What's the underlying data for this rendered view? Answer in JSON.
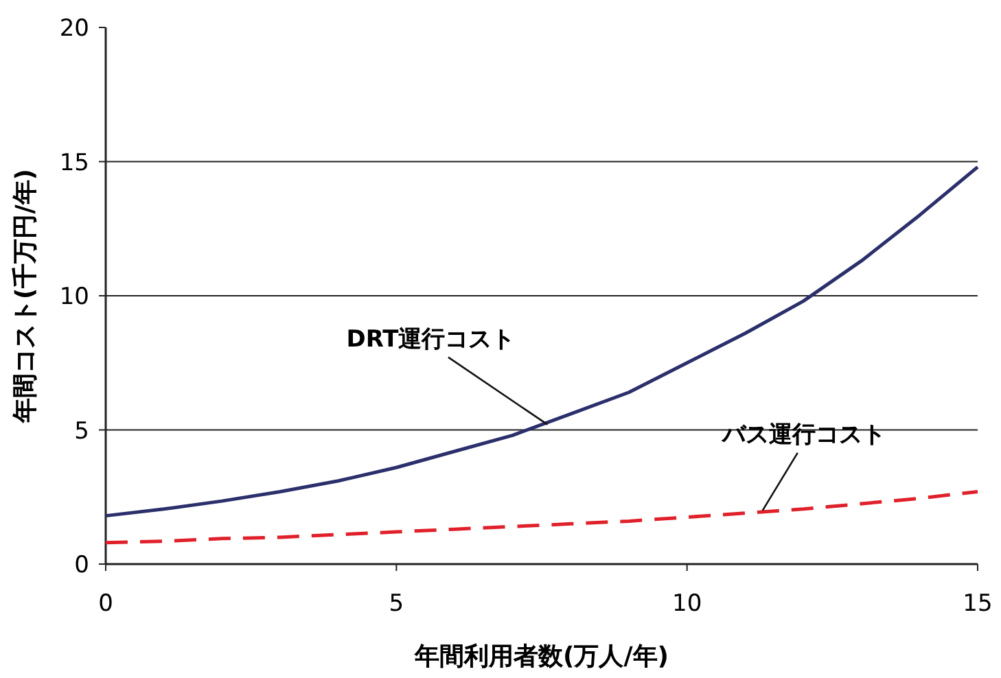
{
  "chart_data": {
    "type": "line",
    "xlabel": "年間利用者数(万人/年)",
    "ylabel": "年間コスト(千万円/年)",
    "x": [
      0,
      1,
      2,
      3,
      4,
      5,
      6,
      7,
      8,
      9,
      10,
      11,
      12,
      13,
      14,
      15
    ],
    "series": [
      {
        "color": "#2b2f6b",
        "line_style": "solid",
        "values": [
          1.8,
          2.05,
          2.35,
          2.7,
          3.1,
          3.6,
          4.2,
          4.8,
          5.6,
          6.4,
          7.5,
          8.6,
          9.8,
          11.3,
          13.0,
          14.8
        ]
      },
      {
        "color": "#e0202a",
        "line_style": "dashed",
        "values": [
          0.8,
          0.85,
          0.95,
          1.0,
          1.1,
          1.2,
          1.3,
          1.4,
          1.5,
          1.6,
          1.75,
          1.9,
          2.05,
          2.25,
          2.45,
          2.7
        ]
      }
    ],
    "annotations": [
      {
        "text": "DRT運行コスト",
        "x": 7.6,
        "y": 5.2
      },
      {
        "text": "バス運行コスト",
        "x": 11.3,
        "y": 2.0
      }
    ],
    "xlim": [
      0,
      15
    ],
    "ylim": [
      0,
      20
    ],
    "xticks": [
      0,
      5,
      10,
      15
    ],
    "yticks": [
      0,
      5,
      10,
      15,
      20
    ],
    "grid": "y",
    "marker": "none"
  }
}
